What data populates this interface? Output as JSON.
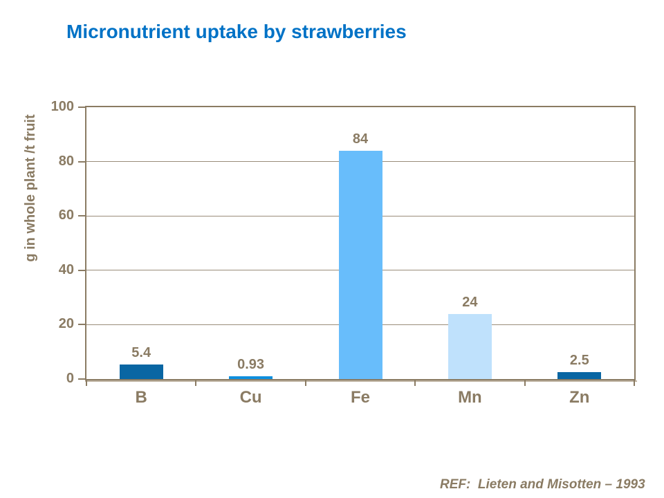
{
  "title": "Micronutrient uptake by strawberries",
  "reference": "REF:  Lieten and Misotten – 1993",
  "colors": {
    "title_text": "#0072C6",
    "axis_text": "#8A7B63",
    "axis_line": "#8A7B63",
    "axis_shadow": "#BDB19F",
    "gridline": "#998C79",
    "background": "#FFFFFF"
  },
  "chart_data": {
    "type": "bar",
    "title": "Micronutrient uptake by strawberries",
    "categories": [
      "B",
      "Cu",
      "Fe",
      "Mn",
      "Zn"
    ],
    "values": [
      5.4,
      0.93,
      84,
      24,
      2.5
    ],
    "value_labels": [
      "5.4",
      "0.93",
      "84",
      "24",
      "2.5"
    ],
    "bar_colors": [
      "#0966A3",
      "#0E8FDE",
      "#68BDFB",
      "#BFE1FC",
      "#0966A3"
    ],
    "xlabel": "",
    "ylabel": "g in whole plant /t fruit",
    "ylim": [
      0,
      100
    ],
    "yticks": [
      0,
      20,
      40,
      60,
      80,
      100
    ],
    "grid": true,
    "legend": false
  }
}
